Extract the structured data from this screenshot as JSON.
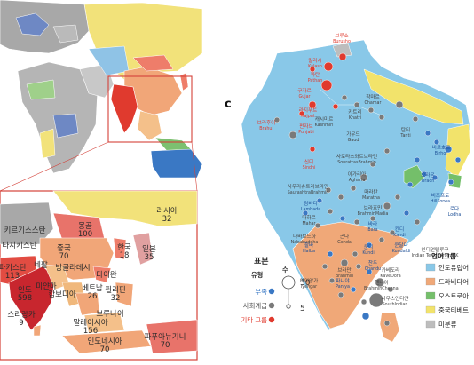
{
  "panel_c_letter": "c",
  "colors": {
    "indo_european": "#89c8e8",
    "dravidian": "#f0a878",
    "austroasiatic": "#74bf6a",
    "sino_tibetan": "#f2e36b",
    "unclassified": "#bdbdbd",
    "tribe": "#3a78c4",
    "caste": "#7a7a7a",
    "other": "#e03a2e",
    "world_frame": "#d4423a"
  },
  "world_map_panel": {
    "asia_regions": [
      {
        "name": "러시아",
        "count": "32"
      },
      {
        "name": "몽골",
        "count": "100"
      },
      {
        "name": "키르기스스탄",
        "count": ""
      },
      {
        "name": "타지키스탄",
        "count": ""
      },
      {
        "name": "중국",
        "count": "70"
      },
      {
        "name": "한국",
        "count": "18"
      },
      {
        "name": "일본",
        "count": "35"
      },
      {
        "name": "파키스탄",
        "count": "113"
      },
      {
        "name": "네팔",
        "count": ""
      },
      {
        "name": "방글라데시",
        "count": ""
      },
      {
        "name": "인도",
        "count": "598"
      },
      {
        "name": "미얀마",
        "count": ""
      },
      {
        "name": "캄보디아",
        "count": ""
      },
      {
        "name": "타이완",
        "count": ""
      },
      {
        "name": "베트남",
        "count": "26"
      },
      {
        "name": "필리핀",
        "count": "32"
      },
      {
        "name": "스리랑카",
        "count": "9"
      },
      {
        "name": "브루나이",
        "count": ""
      },
      {
        "name": "말레이시아",
        "count": "156"
      },
      {
        "name": "인도네시아",
        "count": "70"
      },
      {
        "name": "파푸아뉴기니",
        "count": "70"
      }
    ]
  },
  "panel_c_map": {
    "labels": [
      {
        "text": "브루쇼",
        "sub": "Burusho",
        "group": "other"
      },
      {
        "text": "칼라시",
        "sub": "Kalash",
        "group": "other"
      },
      {
        "text": "파탄",
        "sub": "Pathan",
        "group": "other"
      },
      {
        "text": "구자르",
        "sub": "Gujar",
        "group": "other"
      },
      {
        "text": "캐시미르",
        "sub": "Kashmiri",
        "group": "caste"
      },
      {
        "text": "참마르",
        "sub": "Chamar",
        "group": "caste"
      },
      {
        "text": "라지푸트",
        "sub": "Rajput",
        "group": "other"
      },
      {
        "text": "카트리",
        "sub": "Khatri",
        "group": "caste"
      },
      {
        "text": "펀자브",
        "sub": "Punjabi",
        "group": "other"
      },
      {
        "text": "브라후이",
        "sub": "Brahui",
        "group": "other"
      },
      {
        "text": "가우드",
        "sub": "Gaud",
        "group": "caste"
      },
      {
        "text": "탄티",
        "sub": "Tanti",
        "group": "caste"
      },
      {
        "text": "신디",
        "sub": "Sindhi",
        "group": "other"
      },
      {
        "text": "아가리아",
        "sub": "Agharia",
        "group": "caste"
      },
      {
        "text": "사우라슈트라브라만",
        "sub": "SaurashtraBrahmin",
        "group": "caste"
      },
      {
        "text": "사로라스와트브라민",
        "sub": "SouratrasBrahmin",
        "group": "caste"
      },
      {
        "text": "비르호르",
        "sub": "Birhor",
        "group": "tribe"
      },
      {
        "text": "오라온",
        "sub": "Oraon",
        "group": "tribe"
      },
      {
        "text": "마라탄",
        "sub": "Maratha",
        "group": "caste"
      },
      {
        "text": "람바디",
        "sub": "Lambada",
        "group": "tribe"
      },
      {
        "text": "마하르",
        "sub": "Mahar",
        "group": "caste"
      },
      {
        "text": "비즈프로",
        "sub": "HillKorwa",
        "group": "tribe"
      },
      {
        "text": "로다",
        "sub": "Lodha",
        "group": "tribe"
      },
      {
        "text": "브라흐민",
        "sub": "BrahminMadia",
        "group": "caste"
      },
      {
        "text": "나바보드하",
        "sub": "Nababuddha",
        "group": "caste"
      },
      {
        "text": "할바",
        "sub": "Halba",
        "group": "tribe"
      },
      {
        "text": "바라",
        "sub": "Bara",
        "group": "tribe"
      },
      {
        "text": "곤다",
        "sub": "Gonda",
        "group": "caste"
      },
      {
        "text": "쿤디",
        "sub": "Kundi",
        "group": "tribe"
      },
      {
        "text": "칸디",
        "sub": "Kandi",
        "group": "tribe"
      },
      {
        "text": "쿤달다",
        "sub": "Kundaldi",
        "group": "tribe"
      },
      {
        "text": "인디언텔루구",
        "sub": "Indian Telugu from UK",
        "group": "caste"
      },
      {
        "text": "찬두",
        "sub": "Chandu",
        "group": "tribe"
      },
      {
        "text": "카베도라",
        "sub": "KaveDora",
        "group": "caste"
      },
      {
        "text": "브라만",
        "sub": "Brahmin",
        "group": "caste"
      },
      {
        "text": "아이앙가",
        "sub": "Iyengar",
        "group": "caste"
      },
      {
        "text": "파니야",
        "sub": "Paniya",
        "group": "tribe"
      },
      {
        "text": "첸나이",
        "sub": "BrahminChennai",
        "group": "caste"
      },
      {
        "text": "사우스인디안",
        "sub": "SouthIndian",
        "group": "caste"
      }
    ]
  },
  "sample_legend": {
    "title": "표본",
    "type_header": "유형",
    "count_header": "수",
    "items": [
      {
        "label": "부족",
        "group": "tribe"
      },
      {
        "label": "사회계급",
        "group": "caste"
      },
      {
        "label": "기타 그룹",
        "group": "other"
      }
    ],
    "size_big": "30",
    "size_small": "5"
  },
  "language_legend": {
    "title": "언어그룹",
    "items": [
      {
        "label": "인도유럽어",
        "key": "indo_european"
      },
      {
        "label": "드라비다어",
        "key": "dravidian"
      },
      {
        "label": "오스트로아",
        "key": "austroasiatic"
      },
      {
        "label": "중국티베트",
        "key": "sino_tibetan"
      },
      {
        "label": "미분류",
        "key": "unclassified"
      }
    ]
  }
}
